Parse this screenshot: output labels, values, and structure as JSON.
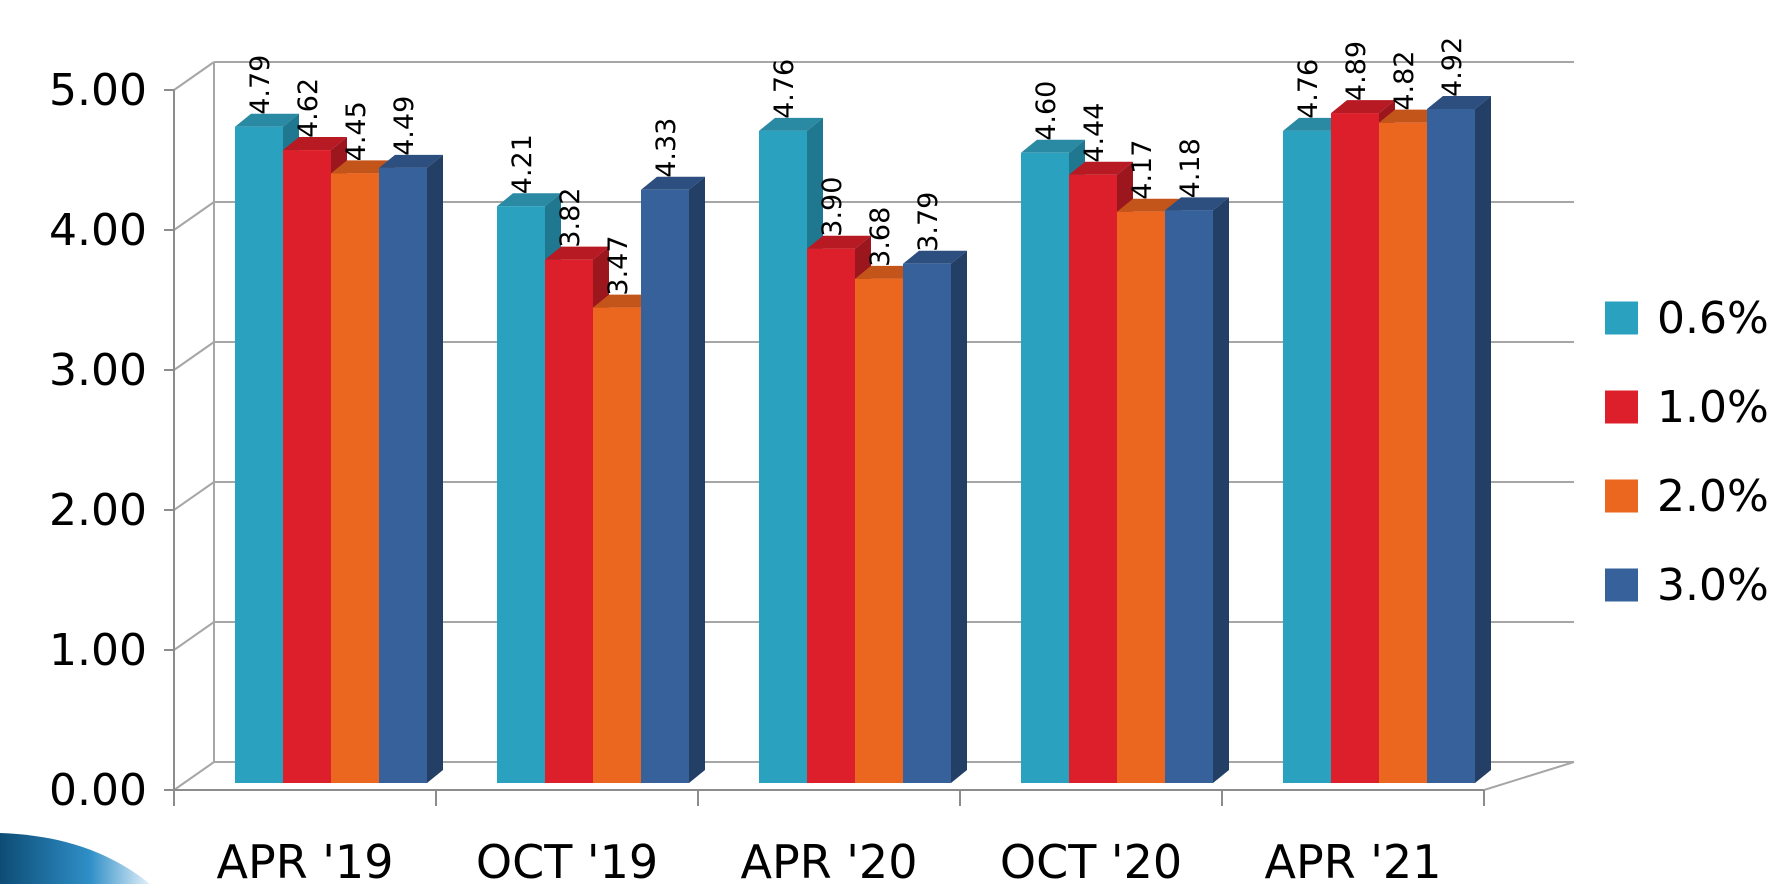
{
  "chart_data": {
    "type": "bar",
    "categories": [
      "APR '19",
      "OCT '19",
      "APR '20",
      "OCT '20",
      "APR '21"
    ],
    "series": [
      {
        "name": "0.6%",
        "color": "#2aa1bf",
        "side_color": "#1f7890",
        "top_color": "#2a8aa3",
        "values": [
          4.79,
          4.21,
          4.76,
          4.6,
          4.76
        ]
      },
      {
        "name": "1.0%",
        "color": "#dd1f2b",
        "side_color": "#9c161e",
        "top_color": "#b81a23",
        "values": [
          4.62,
          3.82,
          3.9,
          4.44,
          4.89
        ]
      },
      {
        "name": "2.0%",
        "color": "#eb661f",
        "side_color": "#a84916",
        "top_color": "#c4551a",
        "values": [
          4.45,
          3.47,
          3.68,
          4.17,
          4.82
        ]
      },
      {
        "name": "3.0%",
        "color": "#37619b",
        "side_color": "#243f66",
        "top_color": "#2c4f80",
        "values": [
          4.49,
          4.33,
          3.79,
          4.18,
          4.92
        ]
      }
    ],
    "data_labels": [
      [
        "4.79",
        "4.21",
        "4.76",
        "4.60",
        "4.76"
      ],
      [
        "4.62",
        "3.82",
        "3.90",
        "4.44",
        "4.89"
      ],
      [
        "4.45",
        "3.47",
        "3.68",
        "4.17",
        "4.82"
      ],
      [
        "4.49",
        "4.33",
        "3.79",
        "4.18",
        "4.92"
      ]
    ],
    "y_ticks": [
      {
        "value": 0,
        "label": "0.00"
      },
      {
        "value": 1,
        "label": "1.00"
      },
      {
        "value": 2,
        "label": "2.00"
      },
      {
        "value": 3,
        "label": "3.00"
      },
      {
        "value": 4,
        "label": "4.00"
      },
      {
        "value": 5,
        "label": "5.00"
      }
    ],
    "ylim": [
      0,
      5
    ],
    "grid": true,
    "legend_position": "right",
    "style": "3d-clustered-column"
  }
}
